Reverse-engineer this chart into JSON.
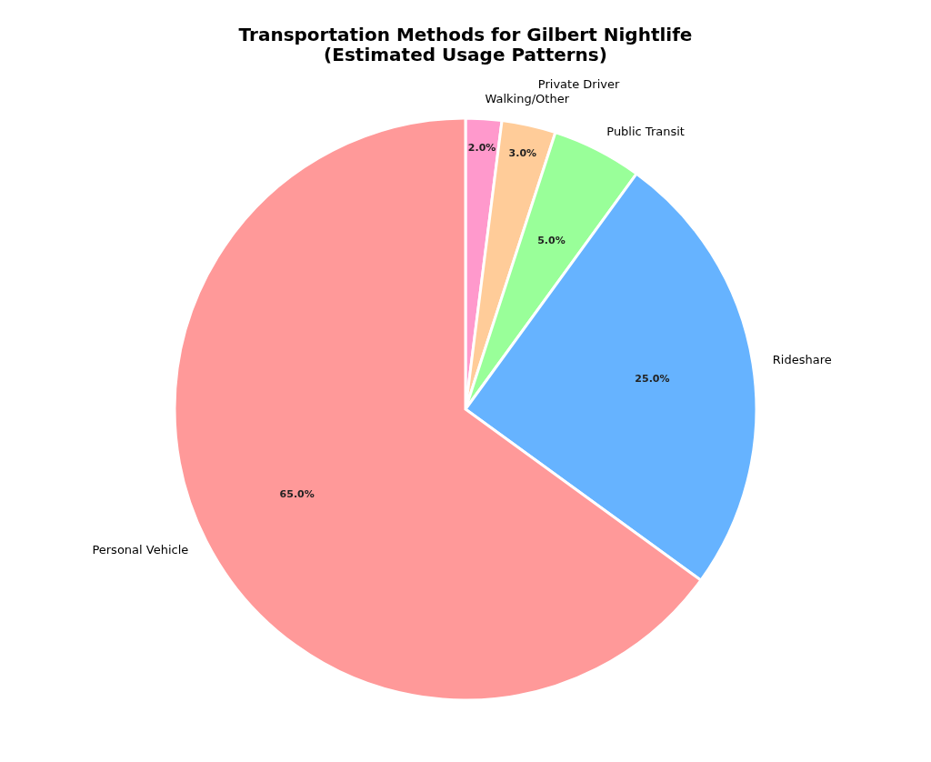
{
  "chart_data": {
    "type": "pie",
    "title": "Transportation Methods for Gilbert Nightlife\n(Estimated Usage Patterns)",
    "categories": [
      "Walking/Other",
      "Private Driver",
      "Public Transit",
      "Rideshare",
      "Personal Vehicle"
    ],
    "values": [
      2,
      3,
      5,
      25,
      65
    ],
    "colors": [
      "#ff99cc",
      "#ffcc99",
      "#99ff99",
      "#66b3ff",
      "#ff9999"
    ],
    "value_labels": [
      "2.0%",
      "3.0%",
      "5.0%",
      "25.0%",
      "65.0%"
    ],
    "legend": false
  }
}
